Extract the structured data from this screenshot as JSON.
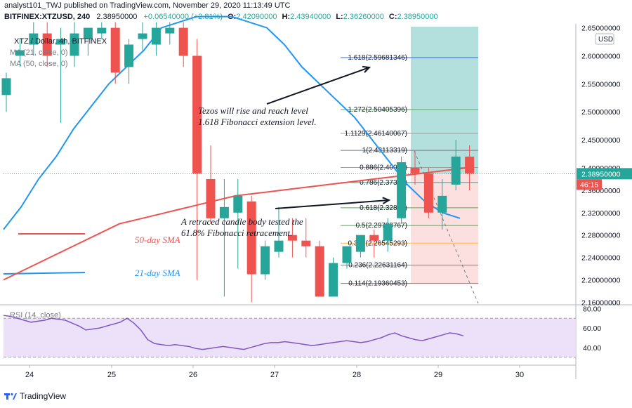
{
  "header": {
    "publish_line": "analyst101_TWJ published on TradingView.com, November 29, 2020 11:13:49 UTC",
    "symbol": "BITFINEX:XTZUSD, 240",
    "last": "2.38950000",
    "change": "+0.06540000 (+2.81%)",
    "o_label": "O:",
    "o": "2.42090000",
    "h_label": "H:",
    "h": "2.43940000",
    "l_label": "L:",
    "l": "2.36260000",
    "c_label": "C:",
    "c": "2.38950000"
  },
  "legend": {
    "title": "XTZ / Dollar, 4h, BITFINEX",
    "ma21": "MA (21, close, 0)",
    "ma50": "MA (50, close, 0)"
  },
  "price_scale": {
    "currency": "USD",
    "current_price": "2.38950000",
    "countdown": "46:15"
  },
  "rsi_legend": "RSI (14, close)",
  "footer": {
    "brand": "TradingView"
  },
  "colors": {
    "up": "#26a69a",
    "down": "#ef5350",
    "ma21": "#2196f3",
    "ma50": "#ef5350",
    "rsi": "#7e57c2",
    "rsi_band": "#e9d9f9"
  },
  "chart_data": [
    {
      "type": "candlestick",
      "title": "XTZ / Dollar, 4h, BITFINEX",
      "x_ticks": [
        "24",
        "25",
        "26",
        "27",
        "28",
        "29",
        "30"
      ],
      "y_ticks": [
        "2.65000000",
        "2.60000000",
        "2.55000000",
        "2.50000000",
        "2.45000000",
        "2.40000000",
        "2.36000000",
        "2.32000000",
        "2.28000000",
        "2.24000000",
        "2.20000000",
        "2.16000000"
      ],
      "ylim": [
        2.158,
        2.652
      ],
      "candles": [
        {
          "o": 2.53,
          "h": 2.57,
          "l": 2.5,
          "c": 2.56
        },
        {
          "o": 2.6,
          "h": 2.63,
          "l": 2.58,
          "c": 2.61
        },
        {
          "o": 2.62,
          "h": 2.66,
          "l": 2.6,
          "c": 2.64
        },
        {
          "o": 2.64,
          "h": 2.66,
          "l": 2.58,
          "c": 2.6
        },
        {
          "o": 2.62,
          "h": 2.65,
          "l": 2.48,
          "c": 2.63
        },
        {
          "o": 2.6,
          "h": 2.66,
          "l": 2.58,
          "c": 2.64
        },
        {
          "o": 2.63,
          "h": 2.65,
          "l": 2.6,
          "c": 2.65
        },
        {
          "o": 2.64,
          "h": 2.66,
          "l": 2.63,
          "c": 2.65
        },
        {
          "o": 2.65,
          "h": 2.66,
          "l": 2.55,
          "c": 2.57
        },
        {
          "o": 2.58,
          "h": 2.63,
          "l": 2.55,
          "c": 2.62
        },
        {
          "o": 2.63,
          "h": 2.66,
          "l": 2.61,
          "c": 2.64
        },
        {
          "o": 2.62,
          "h": 2.66,
          "l": 2.6,
          "c": 2.65
        },
        {
          "o": 2.64,
          "h": 2.66,
          "l": 2.62,
          "c": 2.65
        },
        {
          "o": 2.65,
          "h": 2.66,
          "l": 2.58,
          "c": 2.6
        },
        {
          "o": 2.6,
          "h": 2.63,
          "l": 2.2,
          "c": 2.39
        },
        {
          "o": 2.38,
          "h": 2.44,
          "l": 2.3,
          "c": 2.31
        },
        {
          "o": 2.31,
          "h": 2.38,
          "l": 2.17,
          "c": 2.33
        },
        {
          "o": 2.32,
          "h": 2.38,
          "l": 2.22,
          "c": 2.35
        },
        {
          "o": 2.34,
          "h": 2.35,
          "l": 2.16,
          "c": 2.21
        },
        {
          "o": 2.21,
          "h": 2.27,
          "l": 2.2,
          "c": 2.26
        },
        {
          "o": 2.25,
          "h": 2.33,
          "l": 2.24,
          "c": 2.27
        },
        {
          "o": 2.28,
          "h": 2.31,
          "l": 2.24,
          "c": 2.27
        },
        {
          "o": 2.27,
          "h": 2.31,
          "l": 2.24,
          "c": 2.26
        },
        {
          "o": 2.26,
          "h": 2.27,
          "l": 2.17,
          "c": 2.17
        },
        {
          "o": 2.17,
          "h": 2.24,
          "l": 2.17,
          "c": 2.23
        },
        {
          "o": 2.23,
          "h": 2.26,
          "l": 2.22,
          "c": 2.26
        },
        {
          "o": 2.25,
          "h": 2.28,
          "l": 2.24,
          "c": 2.28
        },
        {
          "o": 2.28,
          "h": 2.29,
          "l": 2.24,
          "c": 2.27
        },
        {
          "o": 2.27,
          "h": 2.31,
          "l": 2.25,
          "c": 2.3
        },
        {
          "o": 2.31,
          "h": 2.42,
          "l": 2.3,
          "c": 2.41
        },
        {
          "o": 2.4,
          "h": 2.43,
          "l": 2.37,
          "c": 2.39
        },
        {
          "o": 2.39,
          "h": 2.4,
          "l": 2.31,
          "c": 2.32
        },
        {
          "o": 2.32,
          "h": 2.38,
          "l": 2.29,
          "c": 2.35
        },
        {
          "o": 2.37,
          "h": 2.45,
          "l": 2.36,
          "c": 2.42
        },
        {
          "o": 2.42,
          "h": 2.44,
          "l": 2.36,
          "c": 2.39
        }
      ],
      "ma21": [
        2.29,
        2.33,
        2.38,
        2.42,
        2.47,
        2.51,
        2.55,
        2.58,
        2.61,
        2.65,
        2.66,
        2.67,
        2.67,
        2.67,
        2.66,
        2.65,
        2.62,
        2.58,
        2.55,
        2.52,
        2.49,
        2.45,
        2.41,
        2.37,
        2.34,
        2.32,
        2.31
      ],
      "ma50": [
        2.2,
        2.22,
        2.24,
        2.26,
        2.28,
        2.3,
        2.31,
        2.32,
        2.33,
        2.34,
        2.35,
        2.355,
        2.36,
        2.365,
        2.37,
        2.375,
        2.38,
        2.385,
        2.39,
        2.395,
        2.4
      ],
      "fibonacci": [
        {
          "label": "1.618(2.59681346)",
          "value": 2.59681346
        },
        {
          "label": "1.272(2.50405396)",
          "value": 2.50405396
        },
        {
          "label": "1.1129(2.46140067)",
          "value": 2.46140067
        },
        {
          "label": "1(2.43113319)",
          "value": 2.43113319
        },
        {
          "label": "0.886(2.40057)",
          "value": 2.40057
        },
        {
          "label": "0.786(2.37376)",
          "value": 2.37376
        },
        {
          "label": "0.618(2.32872)",
          "value": 2.32872
        },
        {
          "label": "0.5(2.29708767)",
          "value": 2.29708767
        },
        {
          "label": "0.382(2.26545293)",
          "value": 2.26545293
        },
        {
          "label": "0.236(2.22631164)",
          "value": 2.22631164
        },
        {
          "label": "0.114(2.19360453)",
          "value": 2.19360453
        }
      ],
      "annotations": [
        "Tezos will rise and reach level\n1.618 Fibonacci extension level.",
        "A retraced candle body tested the\n61.8% Fibonacci retracement.",
        "50-day SMA",
        "21-day SMA"
      ]
    },
    {
      "type": "line",
      "title": "RSI (14, close)",
      "y_ticks": [
        "80.00",
        "60.00",
        "40.00"
      ],
      "ylim": [
        24,
        81
      ],
      "band": [
        30,
        70
      ],
      "values": [
        73,
        72,
        70,
        68,
        66,
        67,
        68,
        70,
        69,
        68,
        65,
        62,
        58,
        59,
        60,
        62,
        64,
        66,
        70,
        65,
        58,
        48,
        44,
        43,
        42,
        43,
        42,
        41,
        39,
        38,
        39,
        40,
        41,
        40,
        39,
        38,
        40,
        42,
        44,
        45,
        45,
        46,
        45,
        44,
        43,
        42,
        43,
        44,
        45,
        46,
        47,
        46,
        45,
        46,
        48,
        50,
        53,
        55,
        52,
        50,
        48,
        47,
        49,
        51,
        53,
        55,
        54,
        52
      ]
    }
  ]
}
